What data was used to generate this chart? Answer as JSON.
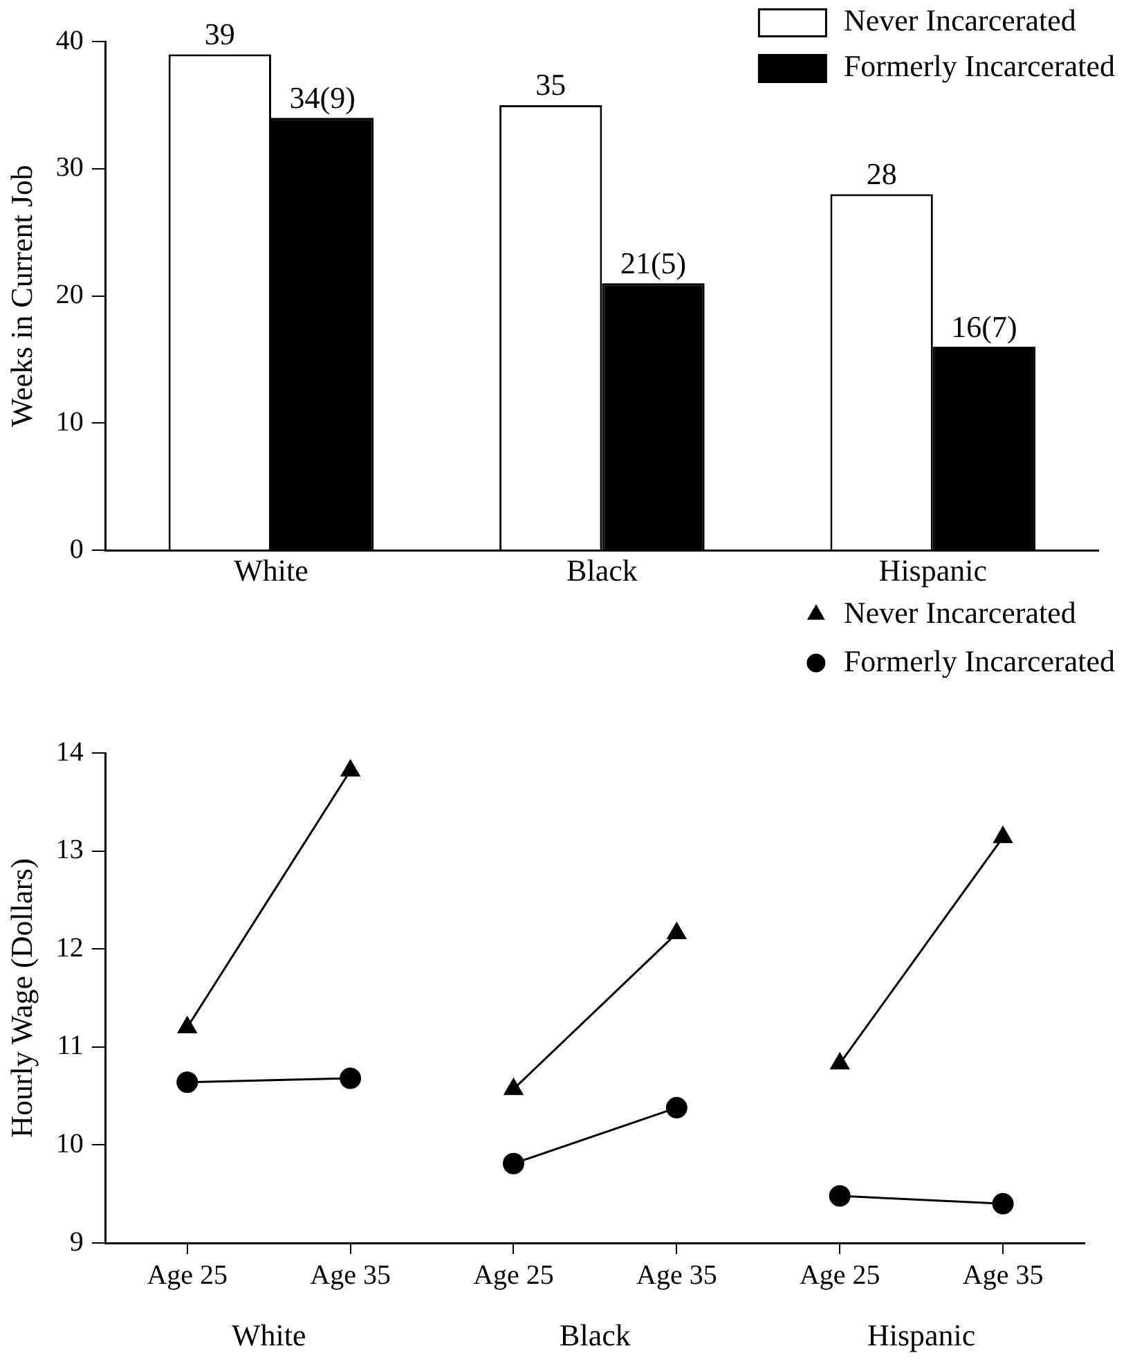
{
  "chart_data": [
    {
      "type": "bar",
      "ylabel": "Weeks in Current Job",
      "categories": [
        "White",
        "Black",
        "Hispanic"
      ],
      "series": [
        {
          "name": "Never Incarcerated",
          "color": "#ffffff",
          "values": [
            39,
            35,
            28
          ],
          "value_labels": [
            "39",
            "35",
            "28"
          ]
        },
        {
          "name": "Formerly Incarcerated",
          "color": "#000000",
          "values": [
            34,
            21,
            16
          ],
          "value_labels": [
            "34(9)",
            "21(5)",
            "16(7)"
          ]
        }
      ],
      "ylim": [
        0,
        40
      ],
      "yticks": [
        0,
        10,
        20,
        30,
        40
      ],
      "grid": false,
      "legend": "top right"
    },
    {
      "type": "line",
      "ylabel": "Hourly Wage (Dollars)",
      "categories": [
        "Age 25",
        "Age 35",
        "Age 25",
        "Age 35",
        "Age 25",
        "Age 35"
      ],
      "series": [
        {
          "name": "Never Incarcerated",
          "color": "#000000",
          "marker": "triangle",
          "values": [
            11.2,
            13.82,
            10.57,
            12.16,
            10.83,
            13.14
          ]
        },
        {
          "name": "Formerly Incarcerated",
          "color": "#000000",
          "marker": "circle",
          "values": [
            10.64,
            10.68,
            9.81,
            10.38,
            9.48,
            9.4
          ]
        }
      ],
      "ylim": [
        9,
        14
      ],
      "yticks": [
        9,
        10,
        11,
        12,
        13,
        14
      ],
      "grid": false,
      "legend": "top right",
      "annotations": [
        "White",
        "Black",
        "Hispanic"
      ]
    }
  ]
}
